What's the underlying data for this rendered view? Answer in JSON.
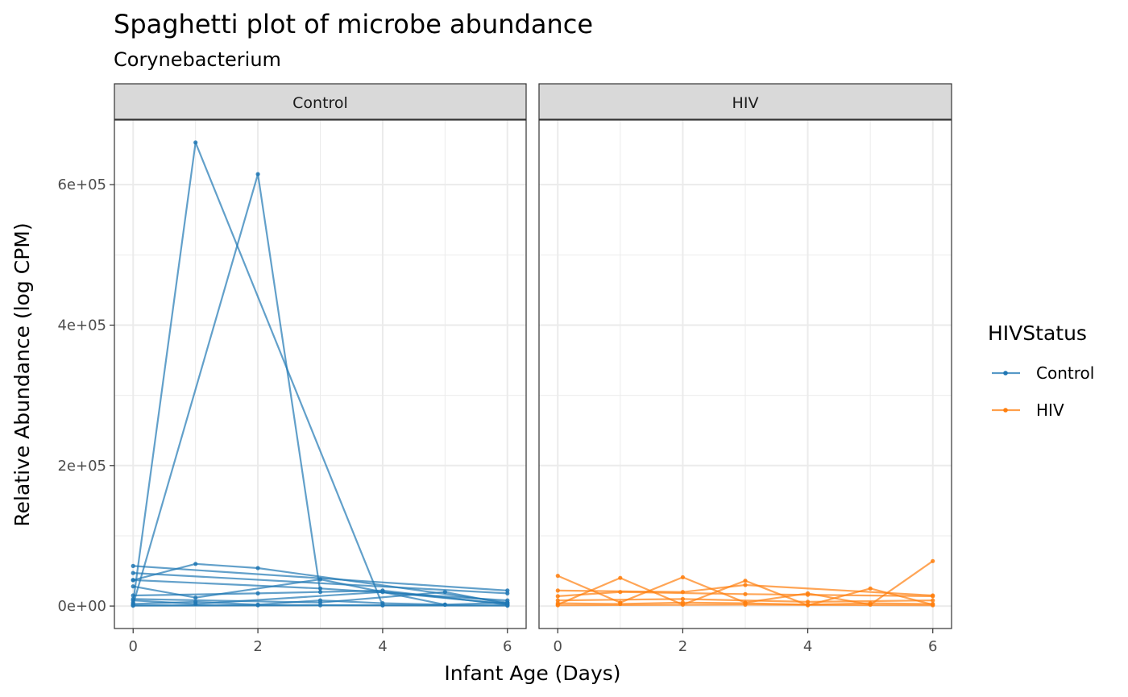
{
  "chart_data": {
    "type": "line",
    "title": "Spaghetti plot of microbe abundance",
    "subtitle": "Corynebacterium",
    "xlabel": "Infant Age (Days)",
    "ylabel": "Relative Abundance (log CPM)",
    "xlim": [
      -0.3,
      6.3
    ],
    "ylim": [
      -32000,
      692000
    ],
    "x_ticks": [
      0,
      2,
      4,
      6
    ],
    "x_tick_labels": [
      "0",
      "2",
      "4",
      "6"
    ],
    "y_ticks": [
      0,
      200000,
      400000,
      600000
    ],
    "y_tick_labels": [
      "0e+00",
      "2e+05",
      "4e+05",
      "6e+05"
    ],
    "grid": true,
    "legend": {
      "title": "HIVStatus",
      "position": "right",
      "entries": [
        {
          "label": "Control",
          "color": "#1f77b4"
        },
        {
          "label": "HIV",
          "color": "#ff7f0e"
        }
      ]
    },
    "panels": [
      {
        "label": "Control",
        "color": "#1f77b4",
        "series": [
          {
            "x": [
              0,
              1,
              4
            ],
            "y": [
              5000,
              660000,
              1000
            ]
          },
          {
            "x": [
              0,
              2,
              3
            ],
            "y": [
              2000,
              615000,
              20000
            ]
          },
          {
            "x": [
              0,
              1,
              2,
              6
            ],
            "y": [
              37000,
              60000,
              54000,
              5000
            ]
          },
          {
            "x": [
              0,
              6
            ],
            "y": [
              57000,
              22000
            ]
          },
          {
            "x": [
              0,
              6
            ],
            "y": [
              47000,
              18000
            ]
          },
          {
            "x": [
              0,
              3,
              6
            ],
            "y": [
              37000,
              25000,
              8000
            ]
          },
          {
            "x": [
              0,
              1,
              3,
              5
            ],
            "y": [
              28000,
              12000,
              38000,
              2000
            ]
          },
          {
            "x": [
              0,
              2,
              4,
              6
            ],
            "y": [
              15000,
              18000,
              22000,
              2000
            ]
          },
          {
            "x": [
              0,
              3,
              5,
              6
            ],
            "y": [
              10000,
              5000,
              20000,
              3000
            ]
          },
          {
            "x": [
              0,
              1,
              4,
              6
            ],
            "y": [
              8000,
              3000,
              20000,
              3000
            ]
          },
          {
            "x": [
              0,
              1,
              2,
              3,
              4,
              5,
              6
            ],
            "y": [
              3000,
              6000,
              2000,
              8000,
              4000,
              2000,
              5000
            ]
          },
          {
            "x": [
              0,
              2,
              4,
              6
            ],
            "y": [
              1000,
              1000,
              1000,
              1000
            ]
          },
          {
            "x": [
              0,
              3,
              6
            ],
            "y": [
              500,
              1000,
              500
            ]
          }
        ]
      },
      {
        "label": "HIV",
        "color": "#ff7f0e",
        "series": [
          {
            "x": [
              0,
              1,
              2,
              3,
              4,
              5,
              6
            ],
            "y": [
              43000,
              5000,
              41000,
              5000,
              18000,
              2000,
              64000
            ]
          },
          {
            "x": [
              0,
              1,
              2,
              3,
              4,
              5,
              6
            ],
            "y": [
              2000,
              40000,
              2000,
              36000,
              1000,
              25000,
              2000
            ]
          },
          {
            "x": [
              0,
              2,
              3,
              6
            ],
            "y": [
              22000,
              20000,
              30000,
              15000
            ]
          },
          {
            "x": [
              0,
              1,
              3,
              4,
              6
            ],
            "y": [
              14000,
              20000,
              17000,
              16000,
              14000
            ]
          },
          {
            "x": [
              0,
              2,
              4,
              6
            ],
            "y": [
              8000,
              10000,
              6000,
              8000
            ]
          },
          {
            "x": [
              0,
              1,
              2,
              3,
              4,
              5,
              6
            ],
            "y": [
              4000,
              3000,
              5000,
              4000,
              2000,
              4000,
              3000
            ]
          },
          {
            "x": [
              0,
              3,
              6
            ],
            "y": [
              1000,
              2000,
              1000
            ]
          }
        ]
      }
    ]
  }
}
